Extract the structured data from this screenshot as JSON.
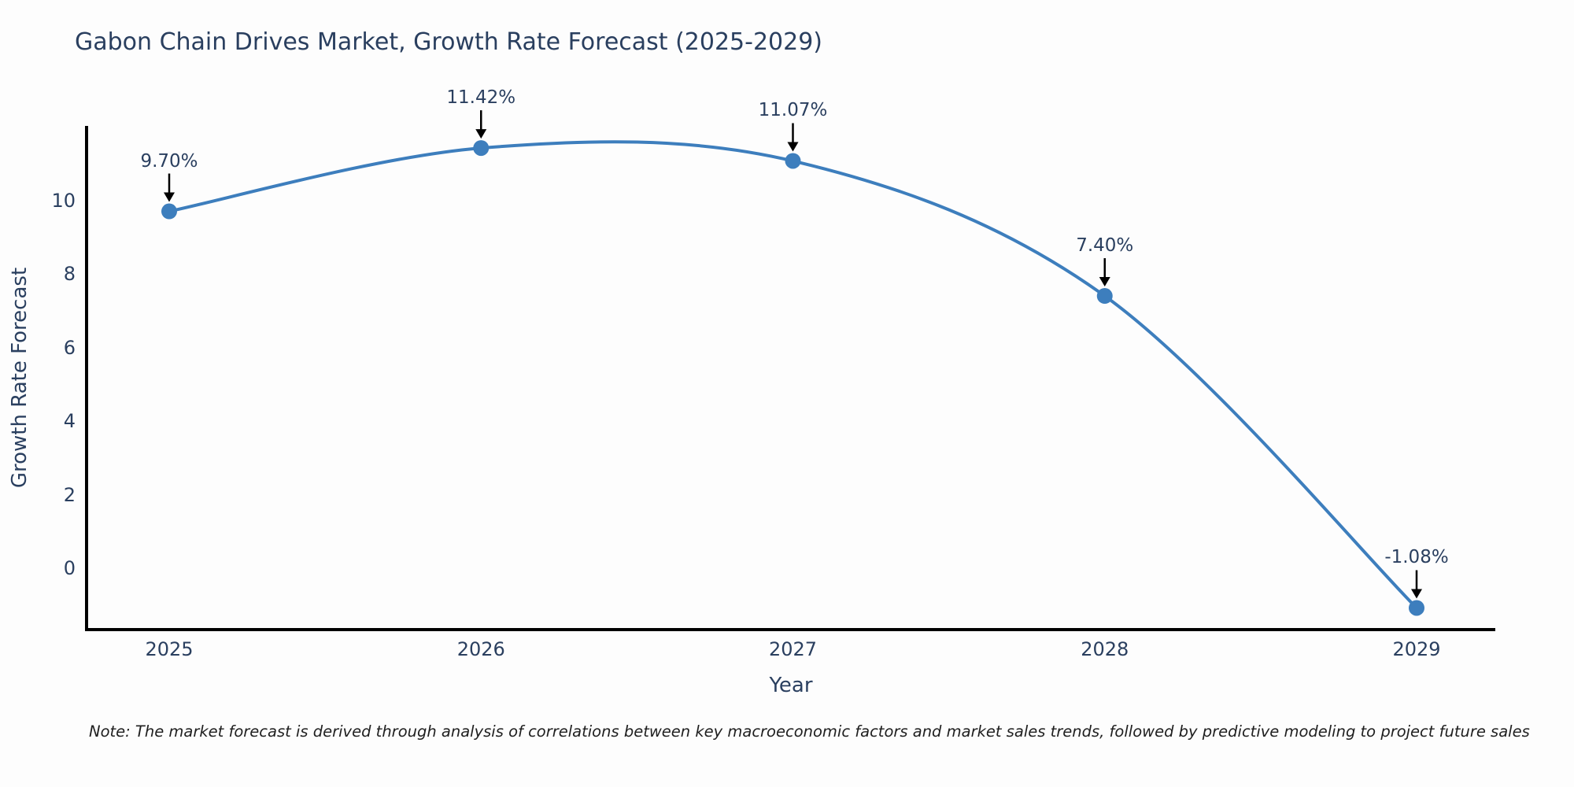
{
  "title": "Gabon Chain Drives Market, Growth Rate Forecast (2025-2029)",
  "note": "Note: The market forecast is derived through analysis of correlations between key macroeconomic factors and market sales trends, followed by predictive modeling to project future sales",
  "chart_data": {
    "type": "line",
    "title": "Gabon Chain Drives Market, Growth Rate Forecast (2025-2029)",
    "xlabel": "Year",
    "ylabel": "Growth Rate Forecast",
    "categories": [
      "2025",
      "2026",
      "2027",
      "2028",
      "2029"
    ],
    "values": [
      9.7,
      11.42,
      11.07,
      7.4,
      -1.08
    ],
    "point_labels": [
      "9.70%",
      "11.42%",
      "11.07%",
      "7.40%",
      "-1.08%"
    ],
    "y_ticks": [
      0,
      2,
      4,
      6,
      8,
      10
    ],
    "ylim": [
      -1.7,
      12.1
    ],
    "grid": false,
    "legend": "none",
    "smooth_line": true,
    "line_color": "#3d7ebd",
    "marker_color": "#3d7ebd",
    "axis_color": "#000000",
    "text_color": "#2a3f5f",
    "annotation_arrow_color": "#000000"
  }
}
